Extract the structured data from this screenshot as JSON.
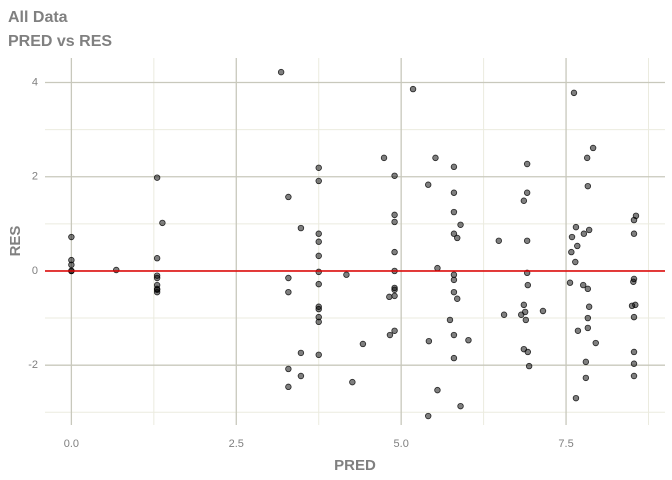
{
  "chart_data": {
    "type": "scatter",
    "title": "All Data",
    "subtitle": "PRED vs RES",
    "x_label": "PRED",
    "y_label": "RES",
    "xlim": [
      -0.4,
      9.0
    ],
    "ylim": [
      -3.27,
      4.52
    ],
    "xticks": [
      {
        "value": 0,
        "label": "0.0"
      },
      2.5,
      {
        "value": 5,
        "label": "5.0"
      },
      7.5
    ],
    "yticks": [
      -2,
      0,
      2,
      4
    ],
    "grid": true,
    "hline": 0,
    "hline_color": "#e00000",
    "color": "#000000",
    "point_alpha": 0.5,
    "series": [
      {
        "name": "RES",
        "x": [
          0,
          0,
          0,
          0,
          0,
          0.68,
          1.3,
          1.3,
          1.3,
          1.3,
          1.3,
          1.3,
          1.3,
          1.3,
          1.38,
          3.18,
          3.29,
          3.29,
          3.29,
          3.29,
          3.29,
          3.48,
          3.48,
          3.48,
          3.75,
          3.75,
          3.75,
          3.75,
          3.75,
          3.75,
          3.75,
          3.75,
          3.75,
          3.75,
          3.75,
          3.75,
          4.17,
          4.26,
          4.42,
          4.74,
          4.82,
          4.83,
          4.9,
          4.9,
          4.9,
          4.9,
          4.9,
          4.9,
          4.9,
          4.9,
          4.9,
          5.18,
          5.41,
          5.42,
          5.41,
          5.52,
          5.55,
          5.55,
          5.74,
          5.8,
          5.8,
          5.8,
          5.8,
          5.85,
          5.9,
          5.8,
          5.8,
          5.8,
          5.85,
          5.8,
          5.8,
          5.9,
          6.02,
          6.48,
          6.56,
          6.82,
          6.86,
          6.88,
          6.89,
          6.86,
          6.91,
          6.91,
          6.91,
          6.91,
          6.92,
          6.86,
          6.92,
          6.94,
          7.15,
          7.59,
          7.62,
          7.58,
          7.56,
          7.64,
          7.65,
          7.67,
          7.65,
          7.68,
          7.76,
          7.83,
          7.83,
          7.82,
          7.77,
          7.85,
          7.83,
          7.85,
          7.8,
          7.8,
          7.91,
          7.95,
          7.83,
          8.56,
          8.53,
          8.53,
          8.53,
          8.52,
          8.55,
          8.5,
          8.53,
          8.53,
          8.53,
          8.53
        ],
        "values": [
          0.72,
          0.23,
          0.13,
          0,
          0,
          0.02,
          1.98,
          0.27,
          -0.1,
          -0.15,
          -0.3,
          -0.4,
          -0.45,
          -0.38,
          1.02,
          4.22,
          1.57,
          -0.15,
          -0.45,
          -2.08,
          -2.46,
          0.91,
          -1.74,
          -2.23,
          2.19,
          1.91,
          0.79,
          0.62,
          0.32,
          -0.02,
          -0.28,
          -0.76,
          -0.81,
          -0.98,
          -1.08,
          -1.78,
          -0.08,
          -2.36,
          -1.55,
          2.4,
          -0.55,
          -1.36,
          1.04,
          2.02,
          1.19,
          0.4,
          0,
          -0.36,
          -0.4,
          -0.53,
          -1.27,
          3.86,
          1.83,
          -1.49,
          -3.08,
          2.4,
          0.06,
          -2.53,
          -1.04,
          2.21,
          1.66,
          1.25,
          0.79,
          0.7,
          0.98,
          -0.08,
          -0.19,
          -0.45,
          -0.59,
          -1.36,
          -1.85,
          -2.87,
          -1.47,
          0.64,
          -0.93,
          -0.93,
          -0.72,
          -0.87,
          -1.04,
          1.49,
          1.66,
          2.27,
          0.64,
          -0.04,
          -0.3,
          -1.66,
          -1.72,
          -2.02,
          -0.85,
          0.72,
          3.78,
          0.4,
          -0.25,
          0.19,
          0.93,
          0.53,
          -2.7,
          -1.27,
          -0.3,
          -0.38,
          1.8,
          2.4,
          0.79,
          0.87,
          -1.21,
          -0.76,
          -1.93,
          -2.27,
          2.61,
          -1.53,
          -1.0,
          1.17,
          1.08,
          0.79,
          -0.17,
          -0.23,
          -0.72,
          -0.74,
          -0.98,
          -1.72,
          -1.97,
          -2.23
        ]
      }
    ]
  }
}
